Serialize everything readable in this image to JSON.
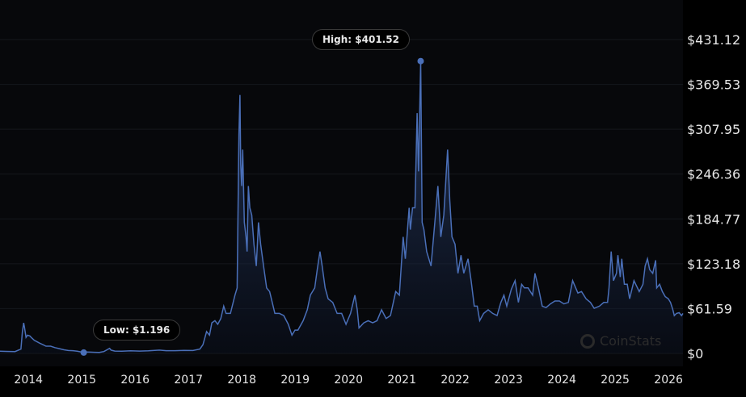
{
  "chart_data": {
    "type": "area",
    "title": "",
    "xlabel": "",
    "ylabel": "",
    "ylim": [
      0,
      431.12
    ],
    "xlim": [
      "2013-06-20",
      "2026-04-10"
    ],
    "grid": true,
    "line_color": "#4a6fb8",
    "y_ticks": [
      "$0",
      "$61.59",
      "$123.18",
      "$184.77",
      "$246.36",
      "$307.95",
      "$369.53",
      "$431.12"
    ],
    "y_tick_values": [
      0,
      61.59,
      123.18,
      184.77,
      246.36,
      307.95,
      369.53,
      431.12
    ],
    "x_ticks": [
      "2014",
      "2015",
      "2016",
      "2017",
      "2018",
      "2019",
      "2020",
      "2021",
      "2022",
      "2023",
      "2024",
      "2025",
      "2026"
    ],
    "annotations": {
      "high": {
        "label": "High: $401.52",
        "date": "2021-05-10",
        "value": 401.52
      },
      "low": {
        "label": "Low: $1.196",
        "date": "2015-01-14",
        "value": 1.196
      }
    },
    "watermark": "CoinStats",
    "series": [
      {
        "points": [
          [
            "2013-06-20",
            3.0
          ],
          [
            "2013-08-01",
            2.8
          ],
          [
            "2013-10-01",
            2.5
          ],
          [
            "2013-11-10",
            6
          ],
          [
            "2013-11-20",
            30
          ],
          [
            "2013-11-29",
            42
          ],
          [
            "2013-12-05",
            35
          ],
          [
            "2013-12-15",
            22
          ],
          [
            "2013-12-25",
            25
          ],
          [
            "2014-01-10",
            24
          ],
          [
            "2014-01-25",
            21
          ],
          [
            "2014-02-10",
            18
          ],
          [
            "2014-03-01",
            16
          ],
          [
            "2014-03-20",
            14
          ],
          [
            "2014-04-10",
            12
          ],
          [
            "2014-05-01",
            10
          ],
          [
            "2014-06-01",
            10
          ],
          [
            "2014-07-01",
            8
          ],
          [
            "2014-08-01",
            6.5
          ],
          [
            "2014-09-01",
            5
          ],
          [
            "2014-10-01",
            4
          ],
          [
            "2014-11-01",
            3.8
          ],
          [
            "2014-12-01",
            3
          ],
          [
            "2015-01-14",
            1.196
          ],
          [
            "2015-02-01",
            2
          ],
          [
            "2015-03-01",
            1.8
          ],
          [
            "2015-04-01",
            1.5
          ],
          [
            "2015-05-01",
            1.4
          ],
          [
            "2015-06-01",
            2.5
          ],
          [
            "2015-07-10",
            7
          ],
          [
            "2015-07-20",
            4.5
          ],
          [
            "2015-08-15",
            3.2
          ],
          [
            "2015-10-01",
            3
          ],
          [
            "2015-12-01",
            3.5
          ],
          [
            "2016-02-01",
            3.2
          ],
          [
            "2016-04-01",
            3.5
          ],
          [
            "2016-06-15",
            4.5
          ],
          [
            "2016-08-01",
            3.8
          ],
          [
            "2016-10-01",
            3.8
          ],
          [
            "2016-12-01",
            4.2
          ],
          [
            "2017-02-01",
            4
          ],
          [
            "2017-03-20",
            6
          ],
          [
            "2017-04-10",
            12
          ],
          [
            "2017-05-05",
            30
          ],
          [
            "2017-05-25",
            25
          ],
          [
            "2017-06-10",
            42
          ],
          [
            "2017-07-01",
            45
          ],
          [
            "2017-07-20",
            40
          ],
          [
            "2017-08-10",
            48
          ],
          [
            "2017-08-30",
            65
          ],
          [
            "2017-09-15",
            55
          ],
          [
            "2017-10-15",
            55
          ],
          [
            "2017-11-15",
            80
          ],
          [
            "2017-11-30",
            90
          ],
          [
            "2017-12-12",
            300
          ],
          [
            "2017-12-19",
            355
          ],
          [
            "2017-12-24",
            260
          ],
          [
            "2017-12-31",
            230
          ],
          [
            "2018-01-07",
            280
          ],
          [
            "2018-01-18",
            180
          ],
          [
            "2018-01-30",
            160
          ],
          [
            "2018-02-06",
            140
          ],
          [
            "2018-02-15",
            230
          ],
          [
            "2018-02-25",
            200
          ],
          [
            "2018-03-10",
            190
          ],
          [
            "2018-03-25",
            150
          ],
          [
            "2018-04-10",
            120
          ],
          [
            "2018-04-25",
            180
          ],
          [
            "2018-05-10",
            150
          ],
          [
            "2018-05-30",
            120
          ],
          [
            "2018-06-20",
            90
          ],
          [
            "2018-07-10",
            85
          ],
          [
            "2018-08-15",
            55
          ],
          [
            "2018-09-15",
            55
          ],
          [
            "2018-10-15",
            52
          ],
          [
            "2018-11-15",
            40
          ],
          [
            "2018-12-10",
            25
          ],
          [
            "2018-12-31",
            32
          ],
          [
            "2019-01-20",
            32
          ],
          [
            "2019-02-25",
            45
          ],
          [
            "2019-03-25",
            60
          ],
          [
            "2019-04-15",
            80
          ],
          [
            "2019-05-15",
            90
          ],
          [
            "2019-06-01",
            115
          ],
          [
            "2019-06-20",
            140
          ],
          [
            "2019-07-05",
            120
          ],
          [
            "2019-07-25",
            90
          ],
          [
            "2019-08-15",
            75
          ],
          [
            "2019-09-15",
            70
          ],
          [
            "2019-10-15",
            55
          ],
          [
            "2019-11-15",
            55
          ],
          [
            "2019-12-15",
            40
          ],
          [
            "2020-01-15",
            55
          ],
          [
            "2020-02-14",
            80
          ],
          [
            "2020-03-01",
            60
          ],
          [
            "2020-03-13",
            35
          ],
          [
            "2020-04-15",
            42
          ],
          [
            "2020-05-15",
            45
          ],
          [
            "2020-06-15",
            42
          ],
          [
            "2020-07-15",
            45
          ],
          [
            "2020-08-15",
            60
          ],
          [
            "2020-09-15",
            48
          ],
          [
            "2020-10-15",
            52
          ],
          [
            "2020-11-20",
            85
          ],
          [
            "2020-12-15",
            80
          ],
          [
            "2021-01-10",
            160
          ],
          [
            "2021-01-25",
            130
          ],
          [
            "2021-02-20",
            200
          ],
          [
            "2021-02-28",
            170
          ],
          [
            "2021-03-15",
            200
          ],
          [
            "2021-04-01",
            200
          ],
          [
            "2021-04-16",
            330
          ],
          [
            "2021-04-25",
            250
          ],
          [
            "2021-05-10",
            401.52
          ],
          [
            "2021-05-20",
            180
          ],
          [
            "2021-06-01",
            170
          ],
          [
            "2021-06-20",
            140
          ],
          [
            "2021-07-20",
            120
          ],
          [
            "2021-08-15",
            180
          ],
          [
            "2021-09-05",
            230
          ],
          [
            "2021-09-25",
            160
          ],
          [
            "2021-10-15",
            190
          ],
          [
            "2021-11-10",
            280
          ],
          [
            "2021-11-25",
            210
          ],
          [
            "2021-12-10",
            160
          ],
          [
            "2021-12-31",
            150
          ],
          [
            "2022-01-20",
            110
          ],
          [
            "2022-02-10",
            135
          ],
          [
            "2022-03-01",
            110
          ],
          [
            "2022-03-30",
            130
          ],
          [
            "2022-04-20",
            100
          ],
          [
            "2022-05-12",
            65
          ],
          [
            "2022-06-01",
            65
          ],
          [
            "2022-06-18",
            45
          ],
          [
            "2022-07-15",
            55
          ],
          [
            "2022-08-15",
            60
          ],
          [
            "2022-09-15",
            55
          ],
          [
            "2022-10-15",
            52
          ],
          [
            "2022-11-10",
            70
          ],
          [
            "2022-12-01",
            80
          ],
          [
            "2022-12-20",
            65
          ],
          [
            "2023-01-20",
            88
          ],
          [
            "2023-02-15",
            100
          ],
          [
            "2023-03-10",
            70
          ],
          [
            "2023-04-01",
            95
          ],
          [
            "2023-04-20",
            90
          ],
          [
            "2023-05-15",
            90
          ],
          [
            "2023-06-15",
            80
          ],
          [
            "2023-07-01",
            110
          ],
          [
            "2023-07-25",
            90
          ],
          [
            "2023-08-20",
            65
          ],
          [
            "2023-09-15",
            63
          ],
          [
            "2023-10-15",
            68
          ],
          [
            "2023-11-15",
            72
          ],
          [
            "2023-12-15",
            72
          ],
          [
            "2024-01-15",
            68
          ],
          [
            "2024-02-15",
            70
          ],
          [
            "2024-03-15",
            100
          ],
          [
            "2024-04-05",
            90
          ],
          [
            "2024-04-20",
            83
          ],
          [
            "2024-05-15",
            85
          ],
          [
            "2024-06-15",
            75
          ],
          [
            "2024-07-15",
            70
          ],
          [
            "2024-08-10",
            62
          ],
          [
            "2024-09-15",
            65
          ],
          [
            "2024-10-15",
            70
          ],
          [
            "2024-11-10",
            70
          ],
          [
            "2024-11-20",
            90
          ],
          [
            "2024-12-05",
            140
          ],
          [
            "2024-12-20",
            100
          ],
          [
            "2025-01-10",
            110
          ],
          [
            "2025-01-20",
            135
          ],
          [
            "2025-02-05",
            105
          ],
          [
            "2025-02-15",
            130
          ],
          [
            "2025-03-05",
            95
          ],
          [
            "2025-03-25",
            95
          ],
          [
            "2025-04-10",
            75
          ],
          [
            "2025-05-10",
            100
          ],
          [
            "2025-06-15",
            85
          ],
          [
            "2025-07-10",
            95
          ],
          [
            "2025-07-25",
            120
          ],
          [
            "2025-08-10",
            130
          ],
          [
            "2025-08-25",
            115
          ],
          [
            "2025-09-15",
            110
          ],
          [
            "2025-10-05",
            128
          ],
          [
            "2025-10-12",
            90
          ],
          [
            "2025-11-01",
            95
          ],
          [
            "2025-11-20",
            85
          ],
          [
            "2025-12-10",
            78
          ],
          [
            "2025-12-31",
            75
          ],
          [
            "2026-01-15",
            70
          ],
          [
            "2026-01-31",
            60
          ],
          [
            "2026-02-10",
            52
          ],
          [
            "2026-02-25",
            55
          ],
          [
            "2026-03-15",
            56
          ],
          [
            "2026-03-31",
            52
          ],
          [
            "2026-04-10",
            55
          ]
        ]
      }
    ]
  }
}
